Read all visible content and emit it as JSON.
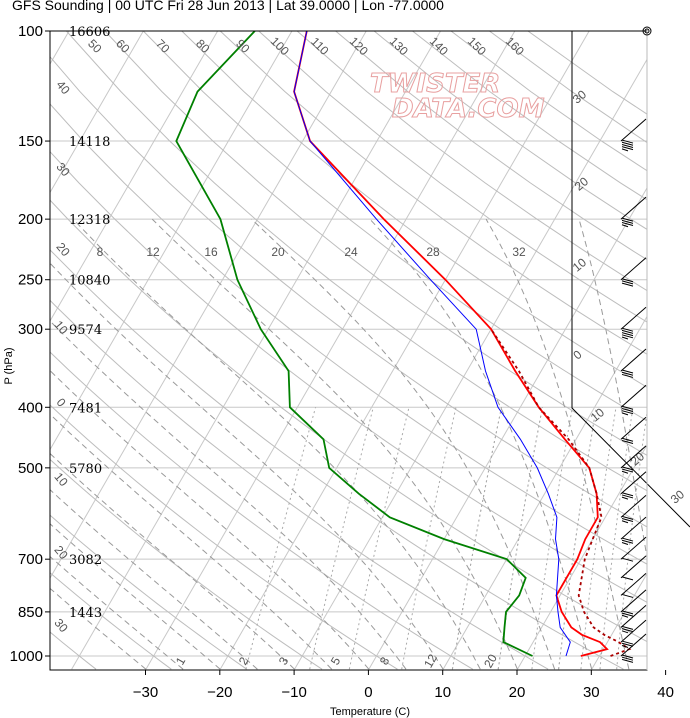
{
  "title": "GFS Sounding | 00 UTC Fri 28 Jun 2013 | Lat 39.0000 | Lon -77.0000",
  "watermark": {
    "line1": "TWISTER",
    "line2": "DATA.COM"
  },
  "chart_data": {
    "type": "skew-t",
    "xlabel": "Temperature (C)",
    "ylabel": "P (hPa)",
    "pressure_levels": [
      100,
      150,
      200,
      250,
      300,
      400,
      500,
      700,
      850,
      1000
    ],
    "pressure_tick_labels": [
      "100",
      "150",
      "200",
      "250",
      "300",
      "400",
      "500",
      "700",
      "850",
      "1000"
    ],
    "height_labels": [
      {
        "p": 100,
        "label": "16606"
      },
      {
        "p": 150,
        "label": "14118"
      },
      {
        "p": 200,
        "label": "12318"
      },
      {
        "p": 250,
        "label": "10840"
      },
      {
        "p": 300,
        "label": "9574"
      },
      {
        "p": 400,
        "label": "7481"
      },
      {
        "p": 500,
        "label": "5780"
      },
      {
        "p": 700,
        "label": "3082"
      },
      {
        "p": 850,
        "label": "1443"
      }
    ],
    "temperature_ticks": [
      -30,
      -20,
      -10,
      0,
      10,
      20,
      30,
      40
    ],
    "temperature_tick_labels": [
      "−30",
      "−20",
      "−10",
      "0",
      "10",
      "20",
      "30",
      "40"
    ],
    "xlim": [
      -34,
      44
    ],
    "ylim": [
      1050,
      100
    ],
    "log_pressure": true,
    "mixing_ratio_labels": [
      "8",
      "12",
      "16",
      "20",
      "24",
      "28",
      "32"
    ],
    "mixing_ratio_values": [
      8,
      12,
      16,
      20,
      24,
      28,
      32
    ],
    "low_mixing_ratio_labels": [
      "1",
      "2",
      "3",
      "5",
      "8",
      "12",
      "20"
    ],
    "low_mixing_ratio_values": [
      1,
      2,
      3,
      5,
      8,
      12,
      20
    ],
    "dry_adiabat_labels": [
      "50",
      "60",
      "70",
      "80",
      "90",
      "100",
      "110",
      "120",
      "130",
      "140",
      "150",
      "160"
    ],
    "dry_adiabat_values": [
      50,
      60,
      70,
      80,
      90,
      100,
      110,
      120,
      130,
      140,
      150,
      160
    ],
    "moist_adiabat_labels": [
      "30",
      "20",
      "10",
      "0",
      "10",
      "20",
      "30"
    ],
    "left_adiabat_labels": [
      "40",
      "30",
      "20",
      "10",
      "0",
      "10",
      "20",
      "30"
    ],
    "series": [
      {
        "name": "temperature",
        "color": "#ff0000",
        "points": [
          [
            1000,
            27.5
          ],
          [
            975,
            30.5
          ],
          [
            950,
            29
          ],
          [
            925,
            26
          ],
          [
            900,
            24
          ],
          [
            850,
            21.5
          ],
          [
            800,
            19.5
          ],
          [
            700,
            19.5
          ],
          [
            650,
            19
          ],
          [
            600,
            19
          ],
          [
            550,
            17
          ],
          [
            500,
            14
          ],
          [
            450,
            8.5
          ],
          [
            400,
            2.5
          ],
          [
            350,
            -3.5
          ],
          [
            300,
            -10
          ],
          [
            250,
            -20
          ],
          [
            200,
            -33
          ],
          [
            150,
            -49
          ],
          [
            125,
            -55
          ],
          [
            100,
            -58
          ]
        ]
      },
      {
        "name": "dewpoint",
        "color": "#008000",
        "points": [
          [
            1000,
            21
          ],
          [
            950,
            16
          ],
          [
            900,
            15
          ],
          [
            850,
            14
          ],
          [
            800,
            14.5
          ],
          [
            750,
            14
          ],
          [
            700,
            10
          ],
          [
            650,
            0
          ],
          [
            600,
            -9
          ],
          [
            550,
            -15
          ],
          [
            500,
            -21
          ],
          [
            450,
            -24
          ],
          [
            400,
            -31
          ],
          [
            350,
            -34
          ],
          [
            300,
            -41
          ],
          [
            250,
            -48
          ],
          [
            200,
            -55
          ],
          [
            150,
            -67
          ],
          [
            125,
            -68
          ],
          [
            100,
            -65
          ]
        ]
      },
      {
        "name": "virtual-temperature",
        "color": "#0000ff",
        "points": [
          [
            1000,
            25.5
          ],
          [
            950,
            25
          ],
          [
            900,
            22.5
          ],
          [
            850,
            21
          ],
          [
            800,
            19.5
          ],
          [
            700,
            17
          ],
          [
            650,
            15
          ],
          [
            600,
            13.5
          ],
          [
            550,
            10.5
          ],
          [
            500,
            7
          ],
          [
            450,
            2.5
          ],
          [
            400,
            -3
          ],
          [
            350,
            -7.5
          ],
          [
            300,
            -12
          ],
          [
            250,
            -22
          ],
          [
            200,
            -34
          ],
          [
            150,
            -49
          ],
          [
            125,
            -55
          ],
          [
            100,
            -58
          ]
        ]
      },
      {
        "name": "parcel",
        "color": "#aa0000",
        "dash": true,
        "points": [
          [
            1000,
            31.5
          ],
          [
            975,
            33.5
          ],
          [
            950,
            31.5
          ],
          [
            925,
            29
          ],
          [
            900,
            27
          ],
          [
            850,
            24.5
          ],
          [
            800,
            22.5
          ],
          [
            700,
            20.5
          ],
          [
            650,
            20
          ],
          [
            600,
            19.5
          ],
          [
            550,
            17
          ],
          [
            500,
            14
          ],
          [
            450,
            9
          ],
          [
            400,
            2.5
          ],
          [
            350,
            -3
          ],
          [
            300,
            -10
          ]
        ]
      }
    ],
    "wind_barbs": [
      {
        "p": 150,
        "spd": 35
      },
      {
        "p": 200,
        "spd": 25
      },
      {
        "p": 250,
        "spd": 30
      },
      {
        "p": 300,
        "spd": 35
      },
      {
        "p": 350,
        "spd": 30
      },
      {
        "p": 400,
        "spd": 25
      },
      {
        "p": 450,
        "spd": 20
      },
      {
        "p": 500,
        "spd": 15
      },
      {
        "p": 550,
        "spd": 15
      },
      {
        "p": 600,
        "spd": 15
      },
      {
        "p": 650,
        "spd": 15
      },
      {
        "p": 700,
        "spd": 10
      },
      {
        "p": 750,
        "spd": 10
      },
      {
        "p": 800,
        "spd": 10
      },
      {
        "p": 850,
        "spd": 15
      },
      {
        "p": 900,
        "spd": 15
      },
      {
        "p": 950,
        "spd": 15
      },
      {
        "p": 1000,
        "spd": 30
      }
    ],
    "top_calm_symbol": "calm-circle",
    "grid": true
  }
}
